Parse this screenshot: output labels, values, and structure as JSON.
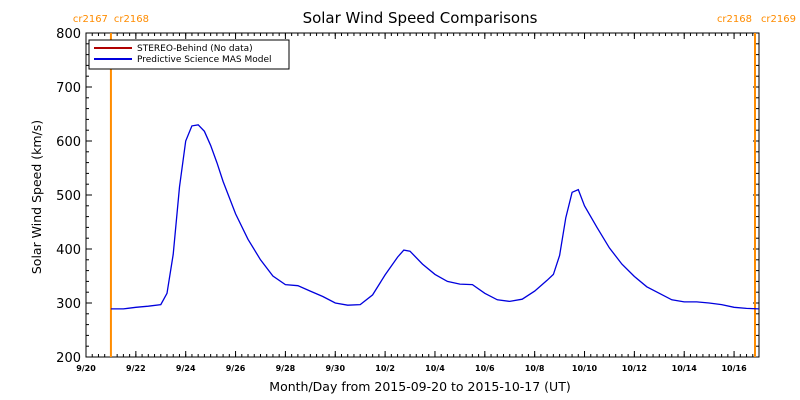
{
  "chart_data": {
    "type": "line",
    "title": "Solar Wind Speed Comparisons",
    "xlabel": "Month/Day from 2015-09-20 to 2015-10-17 (UT)",
    "ylabel": "Solar Wind Speed (km/s)",
    "xlim": [
      "2015-09-20",
      "2015-10-17"
    ],
    "ylim": [
      200,
      800
    ],
    "x_ticks": [
      "9/20",
      "9/22",
      "9/24",
      "9/26",
      "9/28",
      "9/30",
      "10/2",
      "10/4",
      "10/6",
      "10/8",
      "10/10",
      "10/12",
      "10/14",
      "10/16"
    ],
    "y_ticks": [
      200,
      300,
      400,
      500,
      600,
      700,
      800
    ],
    "legend": {
      "placement": "top-left",
      "entries": [
        {
          "label": "STEREO-Behind (No data)",
          "color": "#b00000"
        },
        {
          "label": "Predictive Science MAS Model",
          "color": "#0000dd"
        }
      ]
    },
    "carrington_markers": [
      {
        "date": "2015-09-21",
        "label_left": "cr2167",
        "label_right": "cr2168",
        "color": "#ff8c00"
      },
      {
        "date": "2015-10-17",
        "label_left": "cr2168",
        "label_right": "cr2169",
        "color": "#ff8c00"
      }
    ],
    "series": [
      {
        "name": "Predictive Science MAS Model",
        "color": "#0000dd",
        "x": [
          "2015-09-21 00:00",
          "2015-09-21 12:00",
          "2015-09-22 00:00",
          "2015-09-22 12:00",
          "2015-09-23 00:00",
          "2015-09-23 06:00",
          "2015-09-23 12:00",
          "2015-09-23 18:00",
          "2015-09-24 00:00",
          "2015-09-24 06:00",
          "2015-09-24 12:00",
          "2015-09-24 18:00",
          "2015-09-25 00:00",
          "2015-09-25 06:00",
          "2015-09-25 12:00",
          "2015-09-26 00:00",
          "2015-09-26 12:00",
          "2015-09-27 00:00",
          "2015-09-27 12:00",
          "2015-09-28 00:00",
          "2015-09-28 12:00",
          "2015-09-29 00:00",
          "2015-09-29 12:00",
          "2015-09-30 00:00",
          "2015-09-30 12:00",
          "2015-10-01 00:00",
          "2015-10-01 12:00",
          "2015-10-02 00:00",
          "2015-10-02 12:00",
          "2015-10-02 18:00",
          "2015-10-03 00:00",
          "2015-10-03 12:00",
          "2015-10-04 00:00",
          "2015-10-04 12:00",
          "2015-10-05 00:00",
          "2015-10-05 12:00",
          "2015-10-06 00:00",
          "2015-10-06 12:00",
          "2015-10-07 00:00",
          "2015-10-07 12:00",
          "2015-10-08 00:00",
          "2015-10-08 12:00",
          "2015-10-08 18:00",
          "2015-10-09 00:00",
          "2015-10-09 06:00",
          "2015-10-09 12:00",
          "2015-10-09 18:00",
          "2015-10-10 00:00",
          "2015-10-10 12:00",
          "2015-10-11 00:00",
          "2015-10-11 12:00",
          "2015-10-12 00:00",
          "2015-10-12 12:00",
          "2015-10-13 00:00",
          "2015-10-13 12:00",
          "2015-10-14 00:00",
          "2015-10-14 12:00",
          "2015-10-15 00:00",
          "2015-10-15 12:00",
          "2015-10-16 00:00",
          "2015-10-16 12:00",
          "2015-10-17 00:00"
        ],
        "y": [
          289,
          289,
          292,
          294,
          297,
          318,
          390,
          515,
          600,
          628,
          630,
          618,
          592,
          560,
          525,
          465,
          418,
          380,
          350,
          334,
          332,
          322,
          312,
          300,
          296,
          297,
          315,
          352,
          385,
          398,
          396,
          372,
          353,
          340,
          335,
          334,
          318,
          306,
          303,
          307,
          322,
          342,
          353,
          388,
          458,
          505,
          510,
          480,
          440,
          402,
          372,
          349,
          330,
          318,
          306,
          302,
          302,
          300,
          297,
          292,
          290,
          289
        ]
      }
    ]
  }
}
